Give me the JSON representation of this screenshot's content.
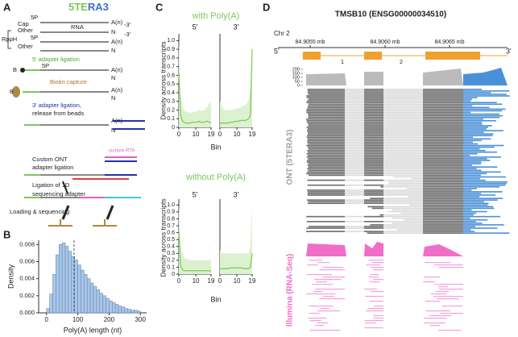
{
  "panel_labels": [
    "A",
    "B",
    "C",
    "D"
  ],
  "diagram": {
    "title_parts": [
      "5TE",
      "RA3"
    ],
    "labels": [
      "5P",
      "Cap",
      "Other",
      "RNA",
      "A(n)",
      "-3'",
      "N",
      "-3'",
      "RppH",
      "5P",
      "Other",
      "A(n)",
      "N",
      "5' adapter ligation",
      "B",
      "5P",
      "A(n)",
      "N",
      "Biotin capture",
      "B",
      "A(n)",
      "N",
      "3' adapter ligation,",
      "release from beads",
      "A(n)",
      "N",
      "custom RTA",
      "Custom ONT",
      "adapter ligation",
      "Ligation of 1D",
      "sequencing adapter",
      "Loading & sequencing"
    ]
  },
  "chart_data": [
    {
      "type": "histogram",
      "xlabel": "Poly(A) length (nt)",
      "ylabel": "Density",
      "color": "#a9c6e8",
      "bins": [
        0,
        10,
        20,
        30,
        40,
        50,
        60,
        70,
        80,
        90,
        100,
        110,
        120,
        130,
        140,
        150,
        160,
        170,
        180,
        190,
        200,
        210,
        220,
        230,
        240,
        250,
        260,
        270,
        280,
        290,
        300
      ],
      "values": [
        0.0005,
        0.0022,
        0.0045,
        0.0068,
        0.008,
        0.0082,
        0.0078,
        0.0072,
        0.0066,
        0.0062,
        0.0056,
        0.005,
        0.0045,
        0.004,
        0.0035,
        0.0031,
        0.0027,
        0.0023,
        0.002,
        0.0017,
        0.0014,
        0.0012,
        0.001,
        0.0008,
        0.0007,
        0.0005,
        0.0004,
        0.0003,
        0.0003,
        0.0002
      ],
      "vline": 88,
      "xlim": [
        -25,
        320
      ],
      "ylim": [
        0,
        0.0085
      ],
      "xticks": [
        0,
        100,
        200,
        300
      ],
      "yticks": [
        {
          "value": 0,
          "label": "0.000"
        },
        {
          "value": 0.002,
          "label": "0.002"
        },
        {
          "value": 0.004,
          "label": "0.004"
        },
        {
          "value": 0.006,
          "label": "0.006"
        },
        {
          "value": 0.008,
          "label": "0.008"
        }
      ]
    },
    {
      "type": "line",
      "title": "with Poly(A)",
      "xlabel": "Bin",
      "ylabel": "Density across transcripts",
      "color": "#7cc85a",
      "band_color": "#dcf1cf",
      "xlim": [
        0,
        19
      ],
      "ylim": [
        0,
        1.05
      ],
      "xticks": [
        0,
        10,
        19
      ],
      "yticks": [
        0,
        0.1,
        0.2,
        0.3,
        0.4,
        0.5,
        0.6,
        0.7,
        0.8,
        0.9,
        {
          "value": 1,
          "label": "1.0"
        }
      ],
      "panels": [
        {
          "label": "5'",
          "x": [
            0,
            1,
            2,
            3,
            4,
            5,
            6,
            7,
            8,
            9,
            10,
            11,
            12,
            13,
            14,
            15,
            16,
            17,
            18,
            19
          ],
          "values": [
            0.62,
            0.15,
            0.08,
            0.06,
            0.05,
            0.05,
            0.05,
            0.05,
            0.06,
            0.06,
            0.06,
            0.06,
            0.07,
            0.06,
            0.06,
            0.06,
            0.07,
            0.07,
            0.06,
            0.05
          ],
          "band_upper": [
            1.0,
            0.4,
            0.25,
            0.2,
            0.18,
            0.18,
            0.17,
            0.17,
            0.18,
            0.18,
            0.18,
            0.19,
            0.2,
            0.19,
            0.19,
            0.2,
            0.22,
            0.24,
            0.28,
            0.3
          ]
        },
        {
          "label": "3'",
          "x": [
            0,
            1,
            2,
            3,
            4,
            5,
            6,
            7,
            8,
            9,
            10,
            11,
            12,
            13,
            14,
            15,
            16,
            17,
            18,
            19
          ],
          "values": [
            0.05,
            0.05,
            0.05,
            0.05,
            0.05,
            0.05,
            0.06,
            0.06,
            0.06,
            0.07,
            0.07,
            0.07,
            0.08,
            0.08,
            0.08,
            0.08,
            0.09,
            0.1,
            0.15,
            0.9
          ],
          "band_upper": [
            0.3,
            0.25,
            0.22,
            0.2,
            0.2,
            0.2,
            0.2,
            0.2,
            0.21,
            0.21,
            0.22,
            0.22,
            0.23,
            0.24,
            0.25,
            0.26,
            0.28,
            0.32,
            0.45,
            1.0
          ]
        }
      ]
    },
    {
      "type": "line",
      "title": "without Poly(A)",
      "xlabel": "Bin",
      "ylabel": "Density across transcripts",
      "color": "#7cc85a",
      "band_color": "#dcf1cf",
      "xlim": [
        0,
        19
      ],
      "ylim": [
        0,
        1.05
      ],
      "xticks": [
        0,
        10,
        19
      ],
      "yticks": [
        0,
        0.1,
        0.2,
        0.3,
        0.4,
        0.5,
        0.6,
        0.7,
        0.8,
        0.9,
        {
          "value": 1,
          "label": "1.0"
        }
      ],
      "panels": [
        {
          "label": "5'",
          "x": [
            0,
            1,
            2,
            3,
            4,
            5,
            6,
            7,
            8,
            9,
            10,
            11,
            12,
            13,
            14,
            15,
            16,
            17,
            18,
            19
          ],
          "values": [
            0.6,
            0.12,
            0.07,
            0.05,
            0.05,
            0.05,
            0.05,
            0.05,
            0.05,
            0.05,
            0.05,
            0.05,
            0.05,
            0.05,
            0.05,
            0.05,
            0.05,
            0.05,
            0.05,
            0.04
          ],
          "band_upper": [
            1.0,
            0.45,
            0.3,
            0.25,
            0.22,
            0.22,
            0.21,
            0.2,
            0.2,
            0.2,
            0.2,
            0.2,
            0.2,
            0.2,
            0.2,
            0.2,
            0.2,
            0.2,
            0.2,
            0.2
          ]
        },
        {
          "label": "3'",
          "x": [
            0,
            1,
            2,
            3,
            4,
            5,
            6,
            7,
            8,
            9,
            10,
            11,
            12,
            13,
            14,
            15,
            16,
            17,
            18,
            19
          ],
          "values": [
            0.07,
            0.08,
            0.08,
            0.08,
            0.08,
            0.08,
            0.09,
            0.09,
            0.09,
            0.09,
            0.09,
            0.09,
            0.09,
            0.09,
            0.08,
            0.08,
            0.08,
            0.08,
            0.1,
            0.3
          ],
          "band_upper": [
            0.35,
            0.3,
            0.3,
            0.3,
            0.3,
            0.3,
            0.3,
            0.3,
            0.3,
            0.3,
            0.3,
            0.3,
            0.3,
            0.3,
            0.3,
            0.3,
            0.3,
            0.3,
            0.4,
            1.0
          ]
        }
      ]
    }
  ],
  "browser": {
    "title": "TMSB10 (ENSG00000034510)",
    "chromosome": "Chr 2",
    "coordinates": [
      "84.9055 mb",
      "84.9060 mb",
      "84.9065 mb"
    ],
    "strand_labels": [
      "5'",
      "3'"
    ],
    "exon_labels": [
      "1",
      "2"
    ],
    "coverage_ylim": [
      0,
      220
    ],
    "coverage_yticks": [
      0,
      50,
      100,
      150,
      200
    ],
    "tracks": [
      "ONT (5TERA3)",
      "Illumina (RNA-Seq)"
    ]
  }
}
